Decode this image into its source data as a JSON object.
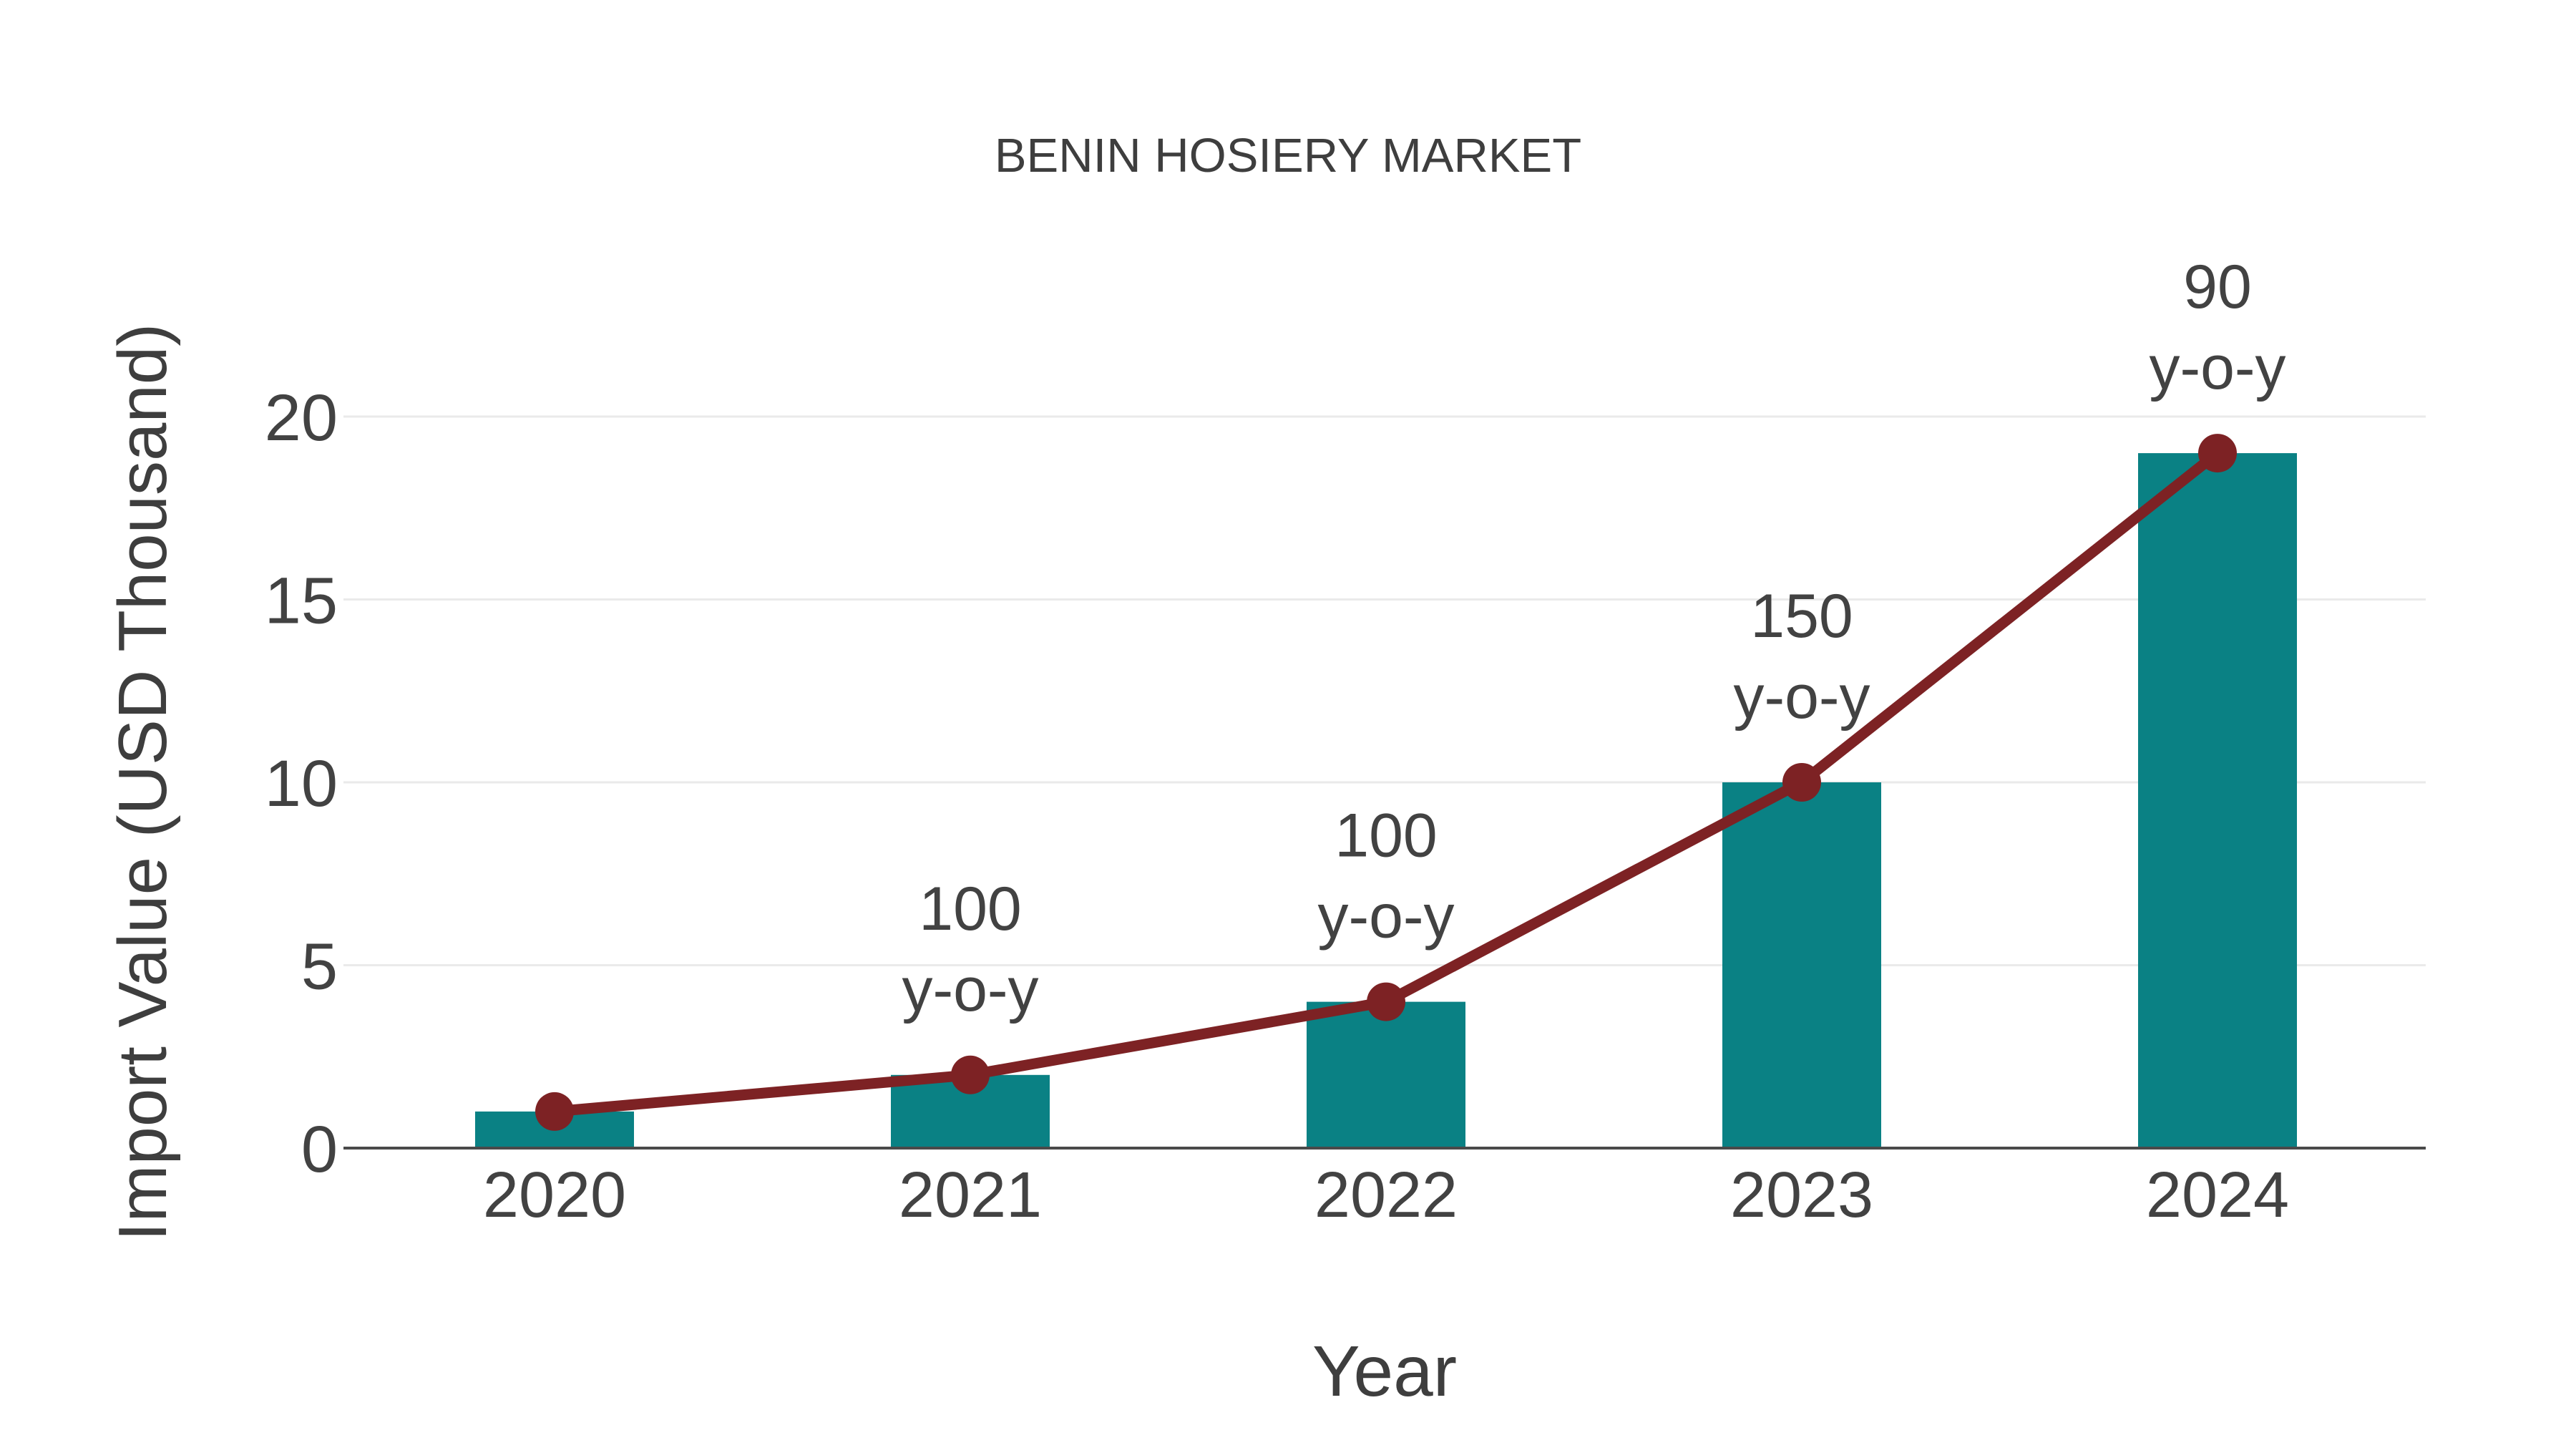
{
  "chart_data": {
    "type": "bar",
    "subtype": "bar-with-trend-line",
    "title": "BENIN HOSIERY MARKET",
    "xlabel": "Year",
    "ylabel": "Import Value (USD Thousand)",
    "categories": [
      "2020",
      "2021",
      "2022",
      "2023",
      "2024"
    ],
    "series": [
      {
        "name": "Import Value bars",
        "type": "bar",
        "values": [
          1,
          2,
          4,
          10,
          19
        ],
        "color": "#0a8184"
      },
      {
        "name": "Import Value trend",
        "type": "line",
        "values": [
          1,
          2,
          4,
          10,
          19
        ],
        "color": "#7d2224",
        "marker": "circle"
      }
    ],
    "annotations": [
      {
        "category": "2021",
        "lines": [
          "100",
          "y-o-y"
        ]
      },
      {
        "category": "2022",
        "lines": [
          "100",
          "y-o-y"
        ]
      },
      {
        "category": "2023",
        "lines": [
          "150",
          "y-o-y"
        ]
      },
      {
        "category": "2024",
        "lines": [
          "90",
          "y-o-y"
        ]
      }
    ],
    "yticks": [
      0,
      5,
      10,
      15,
      20
    ],
    "ylim": [
      0,
      22
    ],
    "grid": true,
    "legend_position": "none",
    "colors": {
      "background": "#ffffff",
      "bar": "#0a8184",
      "line": "#7d2224",
      "grid": "#eaeaea",
      "axis_line": "#4a4a4a",
      "title_text": "#3e3e3e",
      "tick_text": "#424242",
      "annotation_text": "#424242"
    }
  }
}
